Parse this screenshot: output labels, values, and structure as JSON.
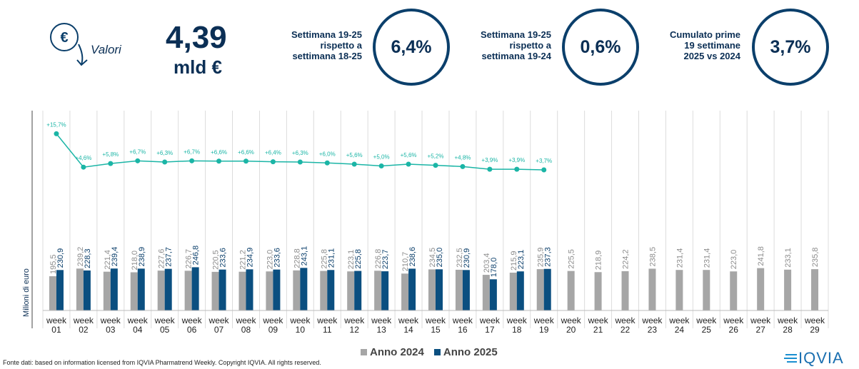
{
  "header": {
    "icon": "€",
    "label": "Valori",
    "total_value": "4,39",
    "total_unit": "mld €",
    "kpis": [
      {
        "lines": [
          "Settimana 19-25",
          "rispetto a",
          "settimana 18-25"
        ],
        "value": "6,4%"
      },
      {
        "lines": [
          "Settimana 19-25",
          "rispetto a",
          "settimana 19-24"
        ],
        "value": "0,6%"
      },
      {
        "lines": [
          "Cumulato prime",
          "19 settimane",
          "2025 vs 2024"
        ],
        "value": "3,7%"
      }
    ]
  },
  "chart_data": {
    "type": "bar",
    "y_label": "Milioni di euro",
    "categories": [
      "week 01",
      "week 02",
      "week 03",
      "week 04",
      "week 05",
      "week 06",
      "week 07",
      "week 08",
      "week 09",
      "week 10",
      "week 11",
      "week 12",
      "week 13",
      "week 14",
      "week 15",
      "week 16",
      "week 17",
      "week 18",
      "week 19",
      "week 20",
      "week 21",
      "week 22",
      "week 23",
      "week 24",
      "week 25",
      "week 26",
      "week 27",
      "week 28",
      "week 29"
    ],
    "ylim": [
      0,
      1100
    ],
    "y2lim": [
      -43,
      21
    ],
    "series": [
      {
        "name": "Anno 2024",
        "color": "#a6a6a6",
        "label_color": "#8c8c8c",
        "values": [
          195.5,
          239.2,
          221.4,
          218.0,
          227.6,
          226.7,
          220.5,
          221.2,
          223.0,
          228.8,
          225.8,
          223.1,
          226.8,
          210.7,
          234.5,
          232.5,
          203.4,
          215.9,
          235.9,
          225.5,
          218.9,
          224.2,
          238.5,
          231.4,
          231.4,
          223.0,
          241.8,
          233.1,
          235.8
        ],
        "value_labels": [
          "195,5",
          "239,2",
          "221,4",
          "218,0",
          "227,6",
          "226,7",
          "220,5",
          "221,2",
          "223,0",
          "228,8",
          "225,8",
          "223,1",
          "226,8",
          "210,7",
          "234,5",
          "232,5",
          "203,4",
          "215,9",
          "235,9",
          "225,5",
          "218,9",
          "224,2",
          "238,5",
          "231,4",
          "231,4",
          "223,0",
          "241,8",
          "233,1",
          "235,8"
        ]
      },
      {
        "name": "Anno 2025",
        "color": "#0b4f80",
        "label_color": "#0b3f6b",
        "values": [
          230.9,
          228.3,
          239.4,
          238.9,
          237.7,
          246.8,
          233.6,
          234.9,
          233.6,
          243.1,
          231.1,
          225.8,
          223.7,
          238.6,
          235.0,
          230.9,
          178.0,
          223.1,
          237.3,
          null,
          null,
          null,
          null,
          null,
          null,
          null,
          null,
          null,
          null
        ],
        "value_labels": [
          "230,9",
          "228,3",
          "239,4",
          "238,9",
          "237,7",
          "246,8",
          "233,6",
          "234,9",
          "233,6",
          "243,1",
          "231,1",
          "225,8",
          "223,7",
          "238,6",
          "235,0",
          "230,9",
          "178,0",
          "223,1",
          "237,3",
          null,
          null,
          null,
          null,
          null,
          null,
          null,
          null,
          null,
          null
        ]
      },
      {
        "type": "line",
        "axis": "y2",
        "color": "#1bb5a6",
        "values": [
          15.7,
          4.6,
          5.8,
          6.7,
          6.3,
          6.7,
          6.6,
          6.6,
          6.4,
          6.3,
          6.0,
          5.6,
          5.0,
          5.6,
          5.2,
          4.8,
          3.9,
          3.9,
          3.7,
          null,
          null,
          null,
          null,
          null,
          null,
          null,
          null,
          null,
          null
        ],
        "value_labels": [
          "+15,7%",
          "+4,6%",
          "+5,8%",
          "+6,7%",
          "+6,3%",
          "+6,7%",
          "+6,6%",
          "+6,6%",
          "+6,4%",
          "+6,3%",
          "+6,0%",
          "+5,6%",
          "+5,0%",
          "+5,6%",
          "+5,2%",
          "+4,8%",
          "+3,9%",
          "+3,9%",
          "+3,7%",
          null,
          null,
          null,
          null,
          null,
          null,
          null,
          null,
          null,
          null
        ]
      }
    ],
    "source": "Fonte dati: based on information licensed from IQVIA Pharmatrend Weekly. Copyright IQVIA. All rights reserved.",
    "logo": "IQVIA"
  }
}
